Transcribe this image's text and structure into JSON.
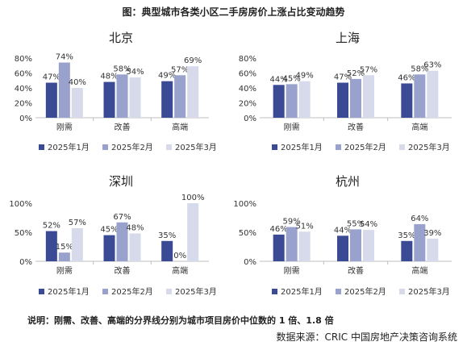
{
  "title": "图：典型城市各类小区二手房房价上涨占比变动趋势",
  "note": "说明：刚需、改善、高端的分界线分别为城市项目房价中位数的 1 倍、1.8 倍",
  "source": "数据来源：CRIC 中国房地产决策咨询系统",
  "colors": [
    "#3b4a94",
    "#98a2cc",
    "#d6daea"
  ],
  "chart_data": [
    {
      "type": "bar",
      "title": "北京",
      "categories": [
        "刚需",
        "改善",
        "高端"
      ],
      "ylim": [
        0,
        80
      ],
      "yticks": [
        0,
        20,
        40,
        60,
        80
      ],
      "series": [
        {
          "name": "2025年1月",
          "values": [
            47,
            48,
            49
          ]
        },
        {
          "name": "2025年2月",
          "values": [
            74,
            58,
            57
          ]
        },
        {
          "name": "2025年3月",
          "values": [
            40,
            54,
            69
          ]
        }
      ]
    },
    {
      "type": "bar",
      "title": "上海",
      "categories": [
        "刚需",
        "改善",
        "高端"
      ],
      "ylim": [
        0,
        80
      ],
      "yticks": [
        0,
        20,
        40,
        60,
        80
      ],
      "series": [
        {
          "name": "2025年1月",
          "values": [
            44,
            47,
            46
          ]
        },
        {
          "name": "2025年2月",
          "values": [
            45,
            52,
            58
          ]
        },
        {
          "name": "2025年3月",
          "values": [
            49,
            57,
            63
          ]
        }
      ]
    },
    {
      "type": "bar",
      "title": "深圳",
      "categories": [
        "刚需",
        "改善",
        "高端"
      ],
      "ylim": [
        0,
        100
      ],
      "yticks": [
        0,
        50,
        100
      ],
      "series": [
        {
          "name": "2025年1月",
          "values": [
            52,
            45,
            35
          ]
        },
        {
          "name": "2025年2月",
          "values": [
            15,
            67,
            0
          ]
        },
        {
          "name": "2025年3月",
          "values": [
            57,
            48,
            100
          ]
        }
      ]
    },
    {
      "type": "bar",
      "title": "杭州",
      "categories": [
        "刚需",
        "改善",
        "高端"
      ],
      "ylim": [
        0,
        100
      ],
      "yticks": [
        0,
        50,
        100
      ],
      "series": [
        {
          "name": "2025年1月",
          "values": [
            46,
            44,
            35
          ]
        },
        {
          "name": "2025年2月",
          "values": [
            59,
            55,
            64
          ]
        },
        {
          "name": "2025年3月",
          "values": [
            51,
            54,
            39
          ]
        }
      ]
    }
  ]
}
